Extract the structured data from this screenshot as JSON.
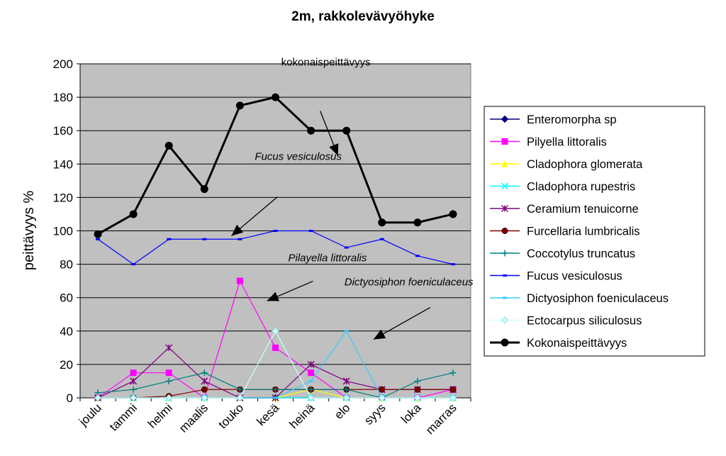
{
  "chart_data": {
    "type": "line",
    "title": "2m, rakkolevävyöhyke",
    "xlabel": "",
    "ylabel": "peittävyys %",
    "ylim": [
      0,
      200
    ],
    "ytick_step": 20,
    "grid": true,
    "legend_position": "right",
    "plot_background": "#c0c0c0",
    "categories": [
      "joulu",
      "tammi",
      "helmi",
      "maalis",
      "touko",
      "kesä",
      "heinä",
      "elo",
      "syys",
      "loka",
      "marras"
    ],
    "series": [
      {
        "name": "Enteromorpha sp",
        "color": "#000080",
        "marker": "diamond",
        "values": [
          0,
          0,
          0,
          0,
          0,
          0,
          0,
          0,
          0,
          0,
          0
        ]
      },
      {
        "name": "Pilyella littoralis",
        "color": "#ff00ff",
        "marker": "square",
        "values": [
          0,
          15,
          15,
          0,
          70,
          30,
          15,
          0,
          0,
          0,
          5
        ]
      },
      {
        "name": "Cladophora glomerata",
        "color": "#ffff00",
        "marker": "triangle",
        "values": [
          0,
          0,
          0,
          0,
          0,
          0,
          5,
          0,
          0,
          0,
          0
        ]
      },
      {
        "name": "Cladophora rupestris",
        "color": "#00ffff",
        "marker": "x",
        "values": [
          0,
          0,
          0,
          0,
          0,
          0,
          0,
          0,
          0,
          0,
          0
        ]
      },
      {
        "name": "Ceramium tenuicorne",
        "color": "#800080",
        "marker": "star",
        "values": [
          0,
          10,
          30,
          10,
          0,
          0,
          20,
          10,
          5,
          5,
          5
        ]
      },
      {
        "name": "Furcellaria lumbricalis",
        "color": "#800000",
        "marker": "circle",
        "values": [
          0,
          0,
          1,
          5,
          5,
          5,
          5,
          5,
          5,
          5,
          5
        ]
      },
      {
        "name": "Coccotylus truncatus",
        "color": "#008080",
        "marker": "plus",
        "values": [
          3,
          5,
          10,
          15,
          5,
          5,
          5,
          5,
          0,
          10,
          15
        ]
      },
      {
        "name": "Fucus vesiculosus",
        "color": "#0000ff",
        "marker": "dash",
        "values": [
          95,
          80,
          95,
          95,
          95,
          100,
          100,
          90,
          95,
          85,
          80
        ]
      },
      {
        "name": "Dictyosiphon foeniculaceus",
        "color": "#33ccff",
        "marker": "dash",
        "values": [
          0,
          0,
          0,
          0,
          0,
          0,
          10,
          40,
          0,
          0,
          0
        ]
      },
      {
        "name": "Ectocarpus siliculosus",
        "color": "#ccffff",
        "marker": "diamond",
        "values": [
          0,
          0,
          0,
          0,
          0,
          40,
          0,
          0,
          0,
          0,
          0
        ]
      },
      {
        "name": "Kokonaispeittävyys",
        "color": "#000000",
        "marker": "circle",
        "bold": true,
        "values": [
          98,
          110,
          151,
          125,
          175,
          180,
          160,
          160,
          105,
          105,
          110
        ]
      }
    ],
    "annotations": [
      {
        "text": "kokonaispeittävyys",
        "italic": false,
        "target_category": "elo",
        "target_value": 145
      },
      {
        "text": "Fucus vesiculosus",
        "italic": true,
        "target_category": "touko",
        "target_value": 97
      },
      {
        "text": "Pilayella littoralis",
        "italic": true,
        "target_category": "kesä",
        "target_value": 58
      },
      {
        "text": "Dictyosiphon foeniculaceus",
        "italic": true,
        "target_category": "syys",
        "target_value": 35
      }
    ]
  }
}
